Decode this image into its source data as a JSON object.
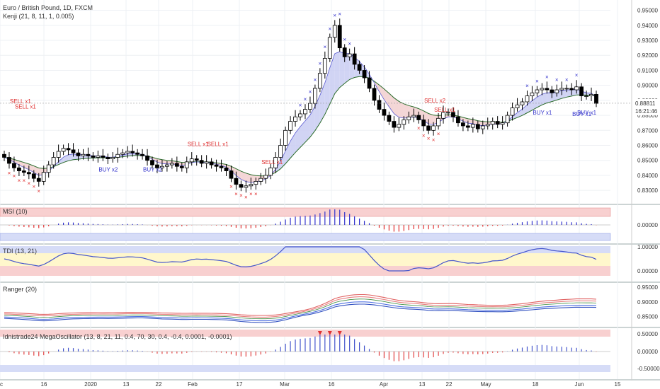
{
  "header": {
    "symbol_title": "Euro / British Pound, 1D, FXCM",
    "kenji_title": "Kenji (21, 8, 11, 1, 0.005)"
  },
  "colors": {
    "up_candle": "#ffffff",
    "down_candle": "#000000",
    "signal_buy": "#3333cc",
    "signal_sell": "#e03030",
    "band_fill_blue": "#c9cdf2",
    "band_fill_red": "#f2cfcf",
    "zone_red": "#f8d0d0",
    "zone_blue": "#d6dcf7",
    "zone_yellow": "#fff7cc",
    "last_price_bg": "#000000"
  },
  "chart_data": [
    {
      "panel": "price",
      "type": "candlestick",
      "title": "Euro / British Pound, 1D, FXCM",
      "ylim": [
        0.823,
        0.955
      ],
      "y_ticks": [
        "0.95000",
        "0.94000",
        "0.93000",
        "0.92000",
        "0.91000",
        "0.90000",
        "0.89000",
        "0.88000",
        "0.87000",
        "0.86000",
        "0.85000",
        "0.84000",
        "0.83000"
      ],
      "y_tick_values": [
        0.95,
        0.94,
        0.93,
        0.92,
        0.91,
        0.9,
        0.89,
        0.88,
        0.87,
        0.86,
        0.85,
        0.84,
        0.83
      ],
      "x_ticks": [
        "c",
        "16",
        "2020",
        "13",
        "22",
        "Feb",
        "17",
        "Mar",
        "16",
        "Apr",
        "13",
        "22",
        "May",
        "18",
        "Jun",
        "15"
      ],
      "last_price": "0.88811",
      "countdown": "16:21:46",
      "close_series": [
        0.852,
        0.848,
        0.845,
        0.843,
        0.842,
        0.841,
        0.838,
        0.836,
        0.842,
        0.847,
        0.852,
        0.856,
        0.858,
        0.857,
        0.855,
        0.853,
        0.854,
        0.853,
        0.852,
        0.853,
        0.852,
        0.851,
        0.852,
        0.854,
        0.855,
        0.856,
        0.855,
        0.854,
        0.853,
        0.85,
        0.847,
        0.845,
        0.846,
        0.847,
        0.848,
        0.846,
        0.845,
        0.849,
        0.851,
        0.85,
        0.848,
        0.849,
        0.847,
        0.846,
        0.845,
        0.843,
        0.838,
        0.834,
        0.832,
        0.833,
        0.834,
        0.836,
        0.838,
        0.84,
        0.845,
        0.852,
        0.86,
        0.87,
        0.876,
        0.879,
        0.881,
        0.884,
        0.888,
        0.898,
        0.908,
        0.918,
        0.932,
        0.94,
        0.925,
        0.919,
        0.921,
        0.914,
        0.91,
        0.905,
        0.898,
        0.89,
        0.884,
        0.88,
        0.876,
        0.872,
        0.874,
        0.877,
        0.879,
        0.88,
        0.877,
        0.873,
        0.87,
        0.873,
        0.878,
        0.882,
        0.882,
        0.879,
        0.875,
        0.873,
        0.872,
        0.874,
        0.871,
        0.873,
        0.874,
        0.876,
        0.874,
        0.875,
        0.88,
        0.885,
        0.887,
        0.889,
        0.893,
        0.895,
        0.897,
        0.898,
        0.897,
        0.895,
        0.897,
        0.898,
        0.898,
        0.897,
        0.899,
        0.893,
        0.893,
        0.894,
        0.888
      ],
      "signals": [
        {
          "label": "SELL x1",
          "kind": "sell",
          "x": "Dec 3"
        },
        {
          "label": "SELL x1",
          "kind": "sell",
          "x": "Dec 4"
        },
        {
          "label": "BUY x2",
          "kind": "buy",
          "x": "Jan 2"
        },
        {
          "label": "BUY x2",
          "kind": "buy",
          "x": "Jan 17"
        },
        {
          "label": "SELL x1",
          "kind": "sell",
          "x": "Jan 30"
        },
        {
          "label": "SELL x1",
          "kind": "sell",
          "x": "Feb 3"
        },
        {
          "label": "SELL x1",
          "kind": "sell",
          "x": "Feb 27"
        },
        {
          "label": "SELL x2",
          "kind": "sell",
          "x": "Apr 20"
        },
        {
          "label": "SELL x1",
          "kind": "sell",
          "x": "Apr 22"
        },
        {
          "label": "BUY x1",
          "kind": "buy",
          "x": "May 28"
        },
        {
          "label": "BUY x1",
          "kind": "buy",
          "x": "Jun 3"
        },
        {
          "label": "BUY x1",
          "kind": "buy",
          "x": "Jun 4"
        }
      ]
    },
    {
      "panel": "msi",
      "type": "bar",
      "title": "MSI (10)",
      "y_ticks": [
        "0.00000"
      ],
      "ylim": [
        -1,
        1
      ]
    },
    {
      "panel": "tdi",
      "type": "line",
      "title": "TDI (13, 21)",
      "y_ticks": [
        "1.00000",
        "0.00000"
      ],
      "ylim": [
        -0.2,
        1.2
      ]
    },
    {
      "panel": "ranger",
      "type": "line",
      "title": "Ranger (20)",
      "y_ticks": [
        "0.95000",
        "0.90000",
        "0.85000"
      ],
      "ylim": [
        0.82,
        0.96
      ]
    },
    {
      "panel": "mega",
      "type": "bar",
      "title": "Idnistrade24 MegaOscillator (13, 8, 21, 11, 0.4, 70, 30, 0.4, -0.4, 0.0001, -0.0001)",
      "y_ticks": [
        "0.50000",
        "0.00000",
        "-0.50000"
      ],
      "ylim": [
        -0.65,
        0.65
      ]
    }
  ]
}
